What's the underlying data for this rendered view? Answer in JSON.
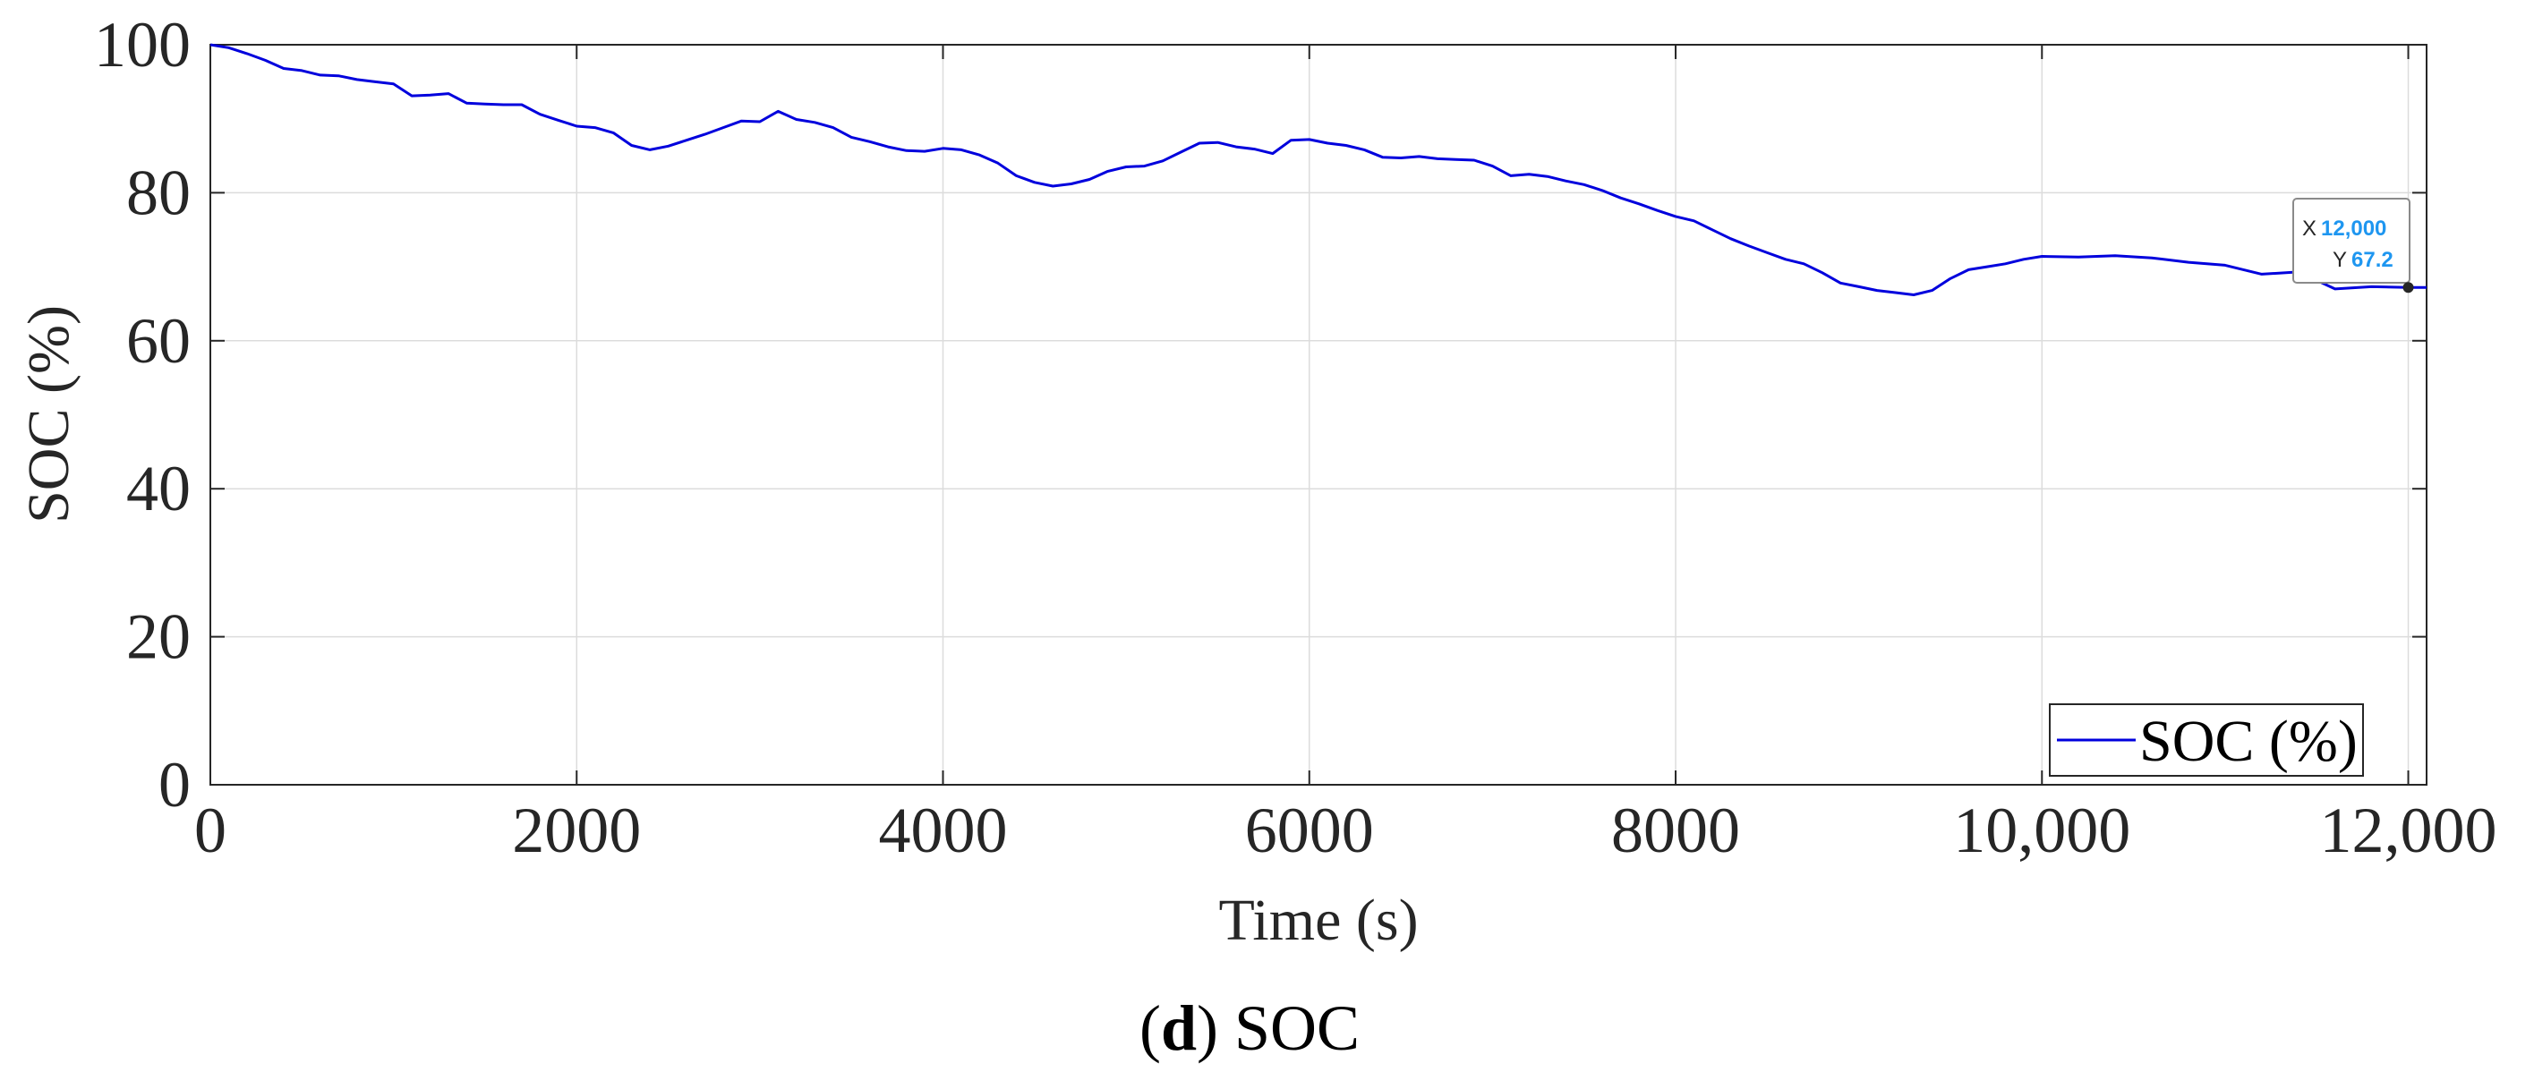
{
  "chart_data": {
    "type": "line",
    "xlabel": "Time (s)",
    "ylabel": "SOC (%)",
    "xlim": [
      0,
      12100
    ],
    "ylim": [
      0,
      100
    ],
    "grid": true,
    "legend_position": "bottom-right",
    "x_ticks": [
      {
        "value": 0,
        "label": "0"
      },
      {
        "value": 2000,
        "label": "2000"
      },
      {
        "value": 4000,
        "label": "4000"
      },
      {
        "value": 6000,
        "label": "6000"
      },
      {
        "value": 8000,
        "label": "8000"
      },
      {
        "value": 10000,
        "label": "10,000"
      },
      {
        "value": 12000,
        "label": "12,000"
      }
    ],
    "y_ticks": [
      {
        "value": 0,
        "label": "0"
      },
      {
        "value": 20,
        "label": "20"
      },
      {
        "value": 40,
        "label": "40"
      },
      {
        "value": 60,
        "label": "60"
      },
      {
        "value": 80,
        "label": "80"
      },
      {
        "value": 100,
        "label": "100"
      }
    ],
    "series": [
      {
        "name": "SOC (%)",
        "color": "#0000dd",
        "x": [
          0,
          100,
          200,
          300,
          400,
          500,
          600,
          700,
          800,
          900,
          1000,
          1100,
          1200,
          1300,
          1400,
          1500,
          1600,
          1700,
          1800,
          1900,
          2000,
          2100,
          2200,
          2300,
          2400,
          2500,
          2600,
          2700,
          2800,
          2900,
          3000,
          3100,
          3200,
          3300,
          3400,
          3500,
          3600,
          3700,
          3800,
          3900,
          4000,
          4100,
          4200,
          4300,
          4400,
          4500,
          4600,
          4700,
          4800,
          4900,
          5000,
          5100,
          5200,
          5300,
          5400,
          5500,
          5600,
          5700,
          5800,
          5900,
          6000,
          6100,
          6200,
          6300,
          6400,
          6500,
          6600,
          6700,
          6800,
          6900,
          7000,
          7100,
          7200,
          7300,
          7400,
          7500,
          7600,
          7700,
          7800,
          7900,
          8000,
          8100,
          8200,
          8300,
          8400,
          8500,
          8600,
          8700,
          8800,
          8900,
          9000,
          9100,
          9200,
          9300,
          9400,
          9500,
          9600,
          9700,
          9800,
          9900,
          10000,
          10200,
          10400,
          10600,
          10800,
          11000,
          11200,
          11400,
          11600,
          11800,
          12000,
          12100
        ],
        "y": [
          100,
          99.6,
          98.8,
          97.9,
          96.8,
          96.5,
          95.9,
          95.8,
          95.3,
          95.0,
          94.7,
          93.1,
          93.2,
          93.4,
          92.1,
          92.0,
          91.9,
          91.9,
          90.6,
          89.8,
          89.0,
          88.8,
          88.1,
          86.4,
          85.8,
          86.3,
          87.1,
          87.9,
          88.8,
          89.7,
          89.6,
          91.0,
          89.9,
          89.5,
          88.8,
          87.5,
          86.9,
          86.2,
          85.7,
          85.6,
          86.0,
          85.8,
          85.1,
          84.0,
          82.3,
          81.4,
          80.9,
          81.2,
          81.8,
          82.9,
          83.5,
          83.6,
          84.3,
          85.5,
          86.7,
          86.8,
          86.2,
          85.9,
          85.3,
          87.1,
          87.2,
          86.7,
          86.4,
          85.8,
          84.8,
          84.7,
          84.9,
          84.6,
          84.5,
          84.4,
          83.6,
          82.3,
          82.5,
          82.2,
          81.6,
          81.1,
          80.3,
          79.3,
          78.5,
          77.6,
          76.8,
          76.2,
          75.0,
          73.8,
          72.8,
          71.9,
          71.0,
          70.4,
          69.2,
          67.8,
          67.3,
          66.8,
          66.5,
          66.2,
          66.8,
          68.4,
          69.6,
          70.0,
          70.4,
          71.0,
          71.4,
          71.3,
          71.5,
          71.2,
          70.6,
          70.2,
          69.0,
          69.3,
          67.0,
          67.3,
          67.2,
          67.2
        ]
      }
    ],
    "datatip": {
      "x_label": "X",
      "x_value": "12,000",
      "y_label": "Y",
      "y_value": "67.2",
      "x": 12000,
      "y": 67.2
    },
    "caption": {
      "bold": "d",
      "text": "SOC"
    }
  }
}
